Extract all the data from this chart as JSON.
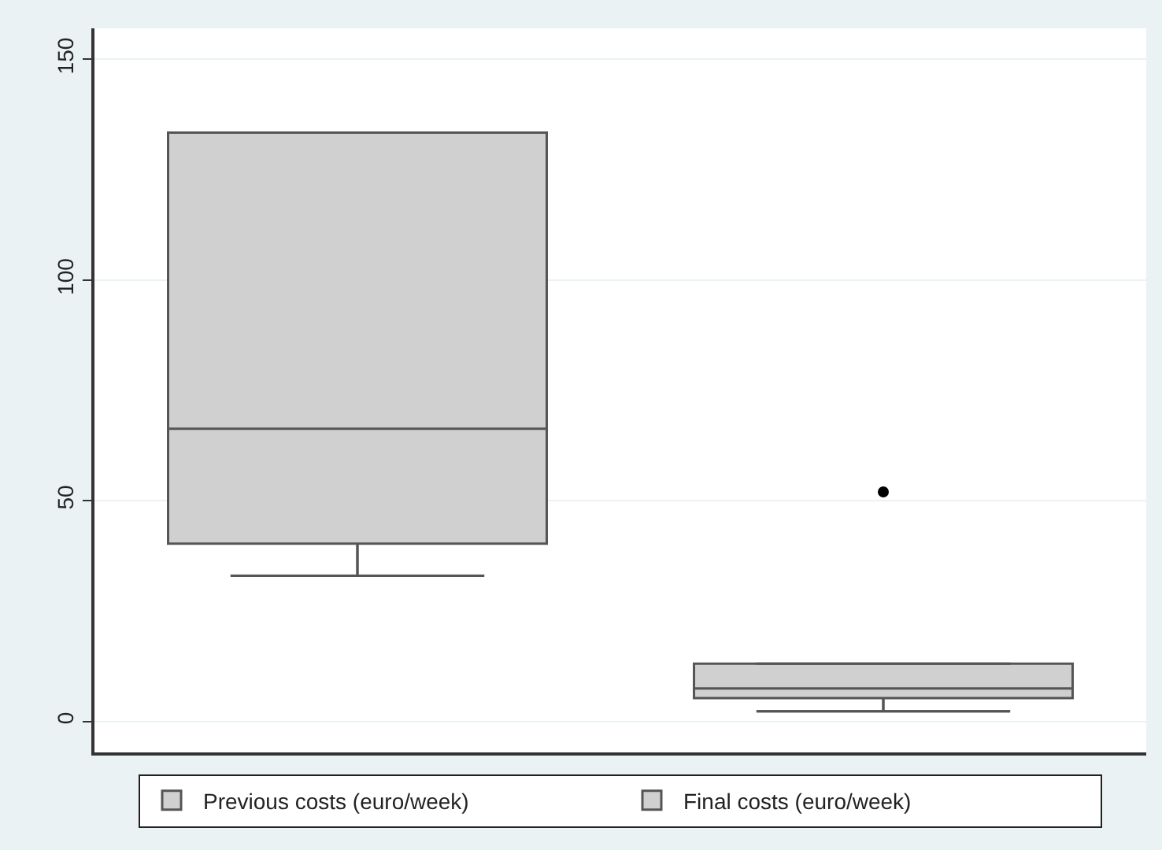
{
  "chart_data": {
    "type": "box",
    "categories": [
      null,
      null
    ],
    "series": [
      {
        "name": "Previous costs (euro/week)",
        "color": "#d0d0d0",
        "boxes": [
          {
            "low": 33.0,
            "q1": 40.3,
            "median": 66.3,
            "q3": 133.4,
            "high": 133.4
          },
          null
        ]
      },
      {
        "name": "Final costs (euro/week)",
        "color": "#d0d0d0",
        "boxes": [
          null,
          {
            "low": 2.3,
            "q1": 5.3,
            "median": 7.5,
            "q3": 13.1,
            "high": 13.1,
            "outliers": [
              52.0
            ]
          }
        ]
      }
    ],
    "ylim": [
      -7,
      157
    ],
    "yticks": [
      0,
      50,
      100,
      150
    ],
    "grid": "y",
    "legend": "bottom",
    "tick_labels": "y"
  }
}
